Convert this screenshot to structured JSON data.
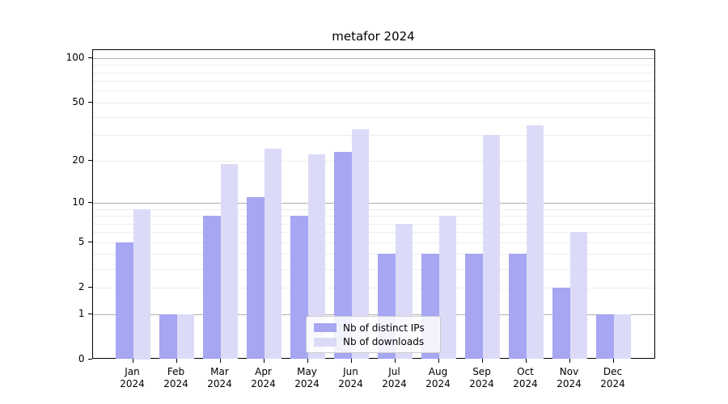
{
  "title": "metafor 2024",
  "chart_data": {
    "type": "bar",
    "title": "metafor 2024",
    "categories": [
      "Jan",
      "Feb",
      "Mar",
      "Apr",
      "May",
      "Jun",
      "Jul",
      "Aug",
      "Sep",
      "Oct",
      "Nov",
      "Dec"
    ],
    "year_label": "2024",
    "series": [
      {
        "key": "distinct-ips",
        "name": "Nb of distinct IPs",
        "color": "#a6a6f2",
        "values": [
          5,
          1,
          8,
          11,
          8,
          23,
          4,
          4,
          4,
          4,
          2,
          1
        ]
      },
      {
        "key": "downloads",
        "name": "Nb of downloads",
        "color": "#dbdbf8",
        "values": [
          9,
          1,
          19,
          24,
          22,
          33,
          7,
          8,
          30,
          35,
          6,
          1
        ]
      }
    ],
    "xlabel": "",
    "ylabel": "",
    "y_scale": "log10(1+x)",
    "y_ticks": [
      0,
      1,
      2,
      5,
      10,
      20,
      50,
      100
    ],
    "ylim": [
      0,
      115
    ],
    "grid": "horizontal log gridlines, majors at 1/10/100, minors at 2-9 and 20-90",
    "legend_position": "inside-bottom-center",
    "colors": {
      "background": "#ffffff",
      "axis_frame": "#000000",
      "grid_minor": "#ededed",
      "grid_major": "#b0b0b0",
      "bar_distinct_ips": "#a6a6f2",
      "bar_downloads": "#dbdbf8",
      "text": "#000000"
    }
  }
}
